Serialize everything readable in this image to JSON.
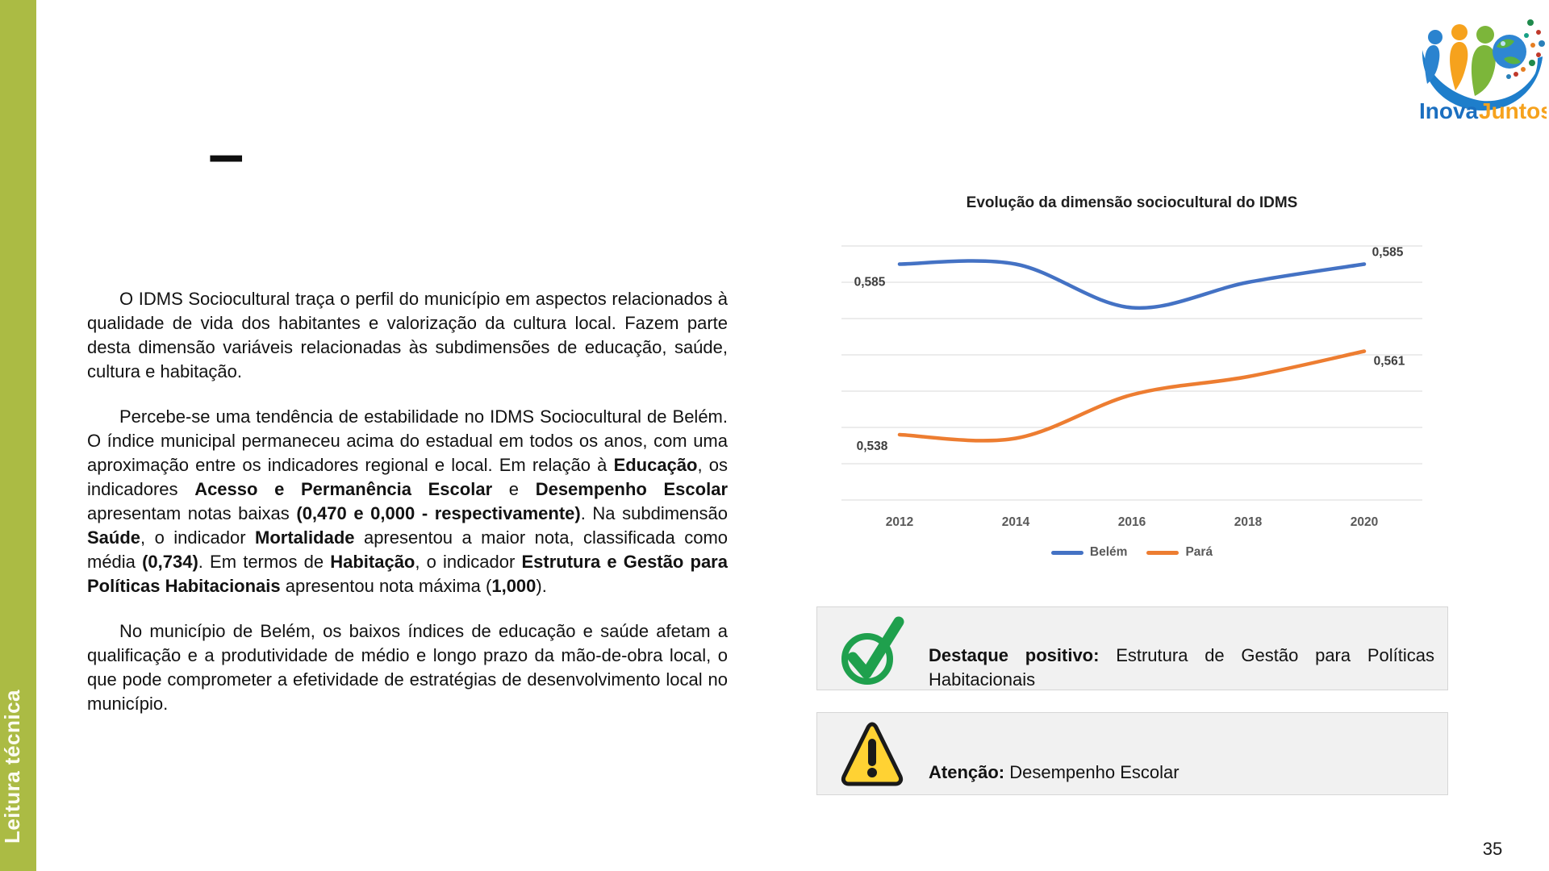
{
  "page": {
    "number": "35"
  },
  "sidebar": {
    "label": "Leitura técnica",
    "color": "#abbb44"
  },
  "heading": {
    "dash": "–"
  },
  "logo": {
    "name_part1": "Inova",
    "name_part2": "Juntos",
    "part1_color": "#1b6fc0",
    "part2_color": "#f6a21d"
  },
  "body": {
    "paragraphs": [
      {
        "segments": [
          "O IDMS Sociocultural traça o perfil do município em aspectos relacionados à qualidade de vida dos habitantes e valorização da cultura local. Fazem parte desta dimensão variáveis relacionadas às subdimensões de educação, saúde, cultura e habitação."
        ]
      },
      {
        "segments": [
          "Percebe-se uma tendência de estabilidade no IDMS Sociocultural de Belém. O índice municipal permaneceu acima do estadual em todos os anos, com uma aproximação entre os indicadores regional e local. Em relação à ",
          {
            "b": "Educação"
          },
          ", os indicadores ",
          {
            "b": "Acesso e Permanência Escolar"
          },
          " e ",
          {
            "b": "Desempenho Escolar"
          },
          " apresentam notas baixas ",
          {
            "b": "(0,470 e 0,000 - respectivamente)"
          },
          ". Na subdimensão ",
          {
            "b": "Saúde"
          },
          ", o indicador ",
          {
            "b": "Mortalidade"
          },
          " apresentou a maior nota, classificada como média ",
          {
            "b": "(0,734)"
          },
          ". Em termos de ",
          {
            "b": "Habitação"
          },
          ", o indicador ",
          {
            "b": "Estrutura e Gestão para Políticas Habitacionais"
          },
          " apresentou nota máxima (",
          {
            "b": "1,000"
          },
          ")."
        ]
      },
      {
        "segments": [
          "No município de Belém, os baixos índices de educação e saúde afetam a qualificação e a produtividade de médio e longo prazo da mão-de-obra local, o que pode comprometer a efetividade de estratégias de desenvolvimento local no município."
        ]
      }
    ]
  },
  "chart_data": {
    "type": "line",
    "title": "Evolução da dimensão sociocultural do IDMS",
    "categories": [
      "2012",
      "2014",
      "2016",
      "2018",
      "2020"
    ],
    "series": [
      {
        "name": "Belém",
        "color": "#4472c4",
        "values": [
          0.585,
          0.585,
          0.573,
          0.58,
          0.585
        ],
        "point_labels": [
          {
            "index": 0,
            "text": "0,585",
            "dx": -37,
            "dy": 27
          },
          {
            "index": 4,
            "text": "0,585",
            "dx": 29,
            "dy": -10
          }
        ]
      },
      {
        "name": "Pará",
        "color": "#ed7d31",
        "values": [
          0.538,
          0.537,
          0.549,
          0.554,
          0.561
        ],
        "point_labels": [
          {
            "index": 0,
            "text": "0,538",
            "dx": -34,
            "dy": 19
          },
          {
            "index": 4,
            "text": "0,561",
            "dx": 31,
            "dy": 17
          }
        ]
      }
    ],
    "ylim": [
      0.52,
      0.59
    ],
    "grid_step": 0.01,
    "grid": true,
    "smooth": true,
    "legend_position": "bottom",
    "xlabel": "",
    "ylabel": "",
    "gridline_color": "#d9d9d9",
    "axis_label_color": "#595959"
  },
  "callouts": [
    {
      "icon": "check-circle-icon",
      "icon_color": "#1fa04d",
      "title": "Destaque positivo:",
      "text": " Estrutura de Gestão para Políticas Habitacionais"
    },
    {
      "icon": "warning-icon",
      "icon_color": "#ffd233",
      "title": "Atenção:",
      "text": " Desempenho Escolar"
    }
  ]
}
